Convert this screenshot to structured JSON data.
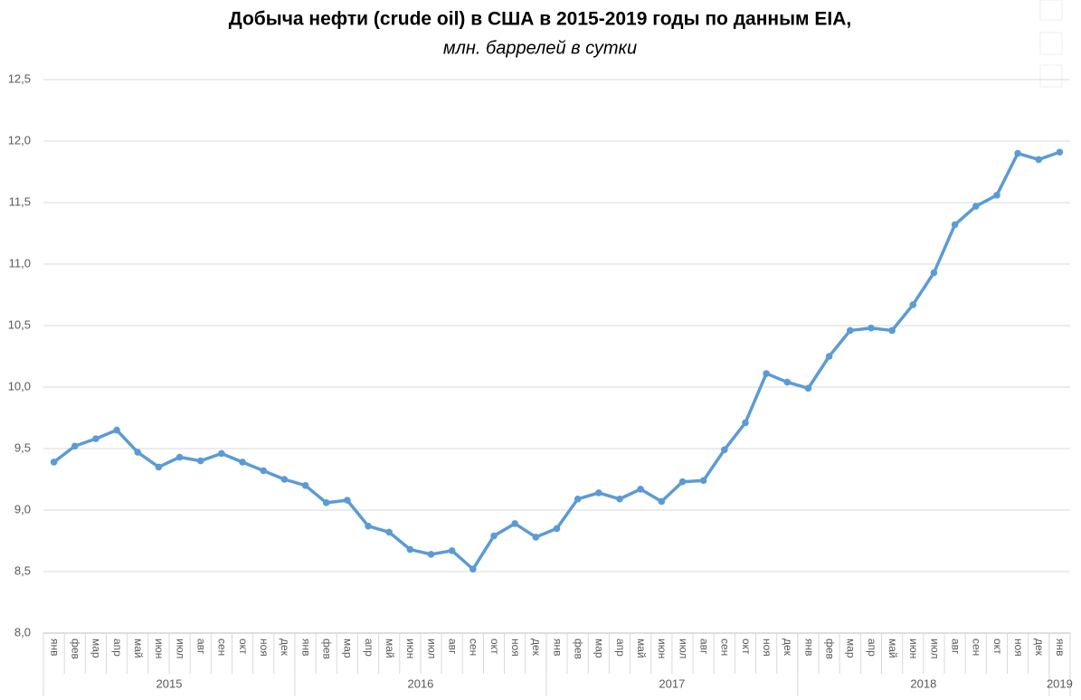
{
  "chart_data": {
    "type": "line",
    "title": "Добыча нефти (crude oil) в США в 2015-2019 годы по данным EIA,",
    "subtitle": "млн. баррелей в сутки",
    "categories": [
      "янв",
      "фев",
      "мар",
      "апр",
      "май",
      "июн",
      "июл",
      "авг",
      "сен",
      "окт",
      "ноя",
      "дек",
      "янв",
      "фев",
      "мар",
      "апр",
      "май",
      "июн",
      "июл",
      "авг",
      "сен",
      "окт",
      "ноя",
      "дек",
      "янв",
      "фев",
      "мар",
      "апр",
      "май",
      "июн",
      "июл",
      "авг",
      "сен",
      "окт",
      "ноя",
      "дек",
      "янв",
      "фев",
      "мар",
      "апр",
      "май",
      "июн",
      "июл",
      "авг",
      "сен",
      "окт",
      "ноя",
      "дек",
      "янв"
    ],
    "category_groups": [
      "2015",
      null,
      null,
      null,
      null,
      null,
      null,
      null,
      null,
      null,
      null,
      null,
      "2016",
      null,
      null,
      null,
      null,
      null,
      null,
      null,
      null,
      null,
      null,
      null,
      "2017",
      null,
      null,
      null,
      null,
      null,
      null,
      null,
      null,
      null,
      null,
      null,
      "2018",
      null,
      null,
      null,
      null,
      null,
      null,
      null,
      null,
      null,
      null,
      null,
      "2019"
    ],
    "values": [
      9.39,
      9.52,
      9.58,
      9.65,
      9.47,
      9.35,
      9.43,
      9.4,
      9.46,
      9.39,
      9.32,
      9.25,
      9.2,
      9.06,
      9.08,
      8.87,
      8.82,
      8.68,
      8.64,
      8.67,
      8.52,
      8.79,
      8.89,
      8.78,
      8.85,
      9.09,
      9.14,
      9.09,
      9.17,
      9.07,
      9.23,
      9.24,
      9.49,
      9.71,
      10.11,
      10.04,
      9.99,
      10.25,
      10.46,
      10.48,
      10.46,
      10.67,
      10.93,
      11.32,
      11.47,
      11.56,
      11.9,
      11.85,
      11.91
    ],
    "color": "#5b9bd5",
    "ylim": [
      8,
      12.5
    ],
    "yticks": [
      {
        "value": 8,
        "label": "8,0"
      },
      {
        "value": 8.5,
        "label": "8,5"
      },
      {
        "value": 9,
        "label": "9,0"
      },
      {
        "value": 9.5,
        "label": "9,5"
      },
      {
        "value": 10,
        "label": "10,0"
      },
      {
        "value": 10.5,
        "label": "10,5"
      },
      {
        "value": 11,
        "label": "11,0"
      },
      {
        "value": 11.5,
        "label": "11,5"
      },
      {
        "value": 12,
        "label": "12,0"
      },
      {
        "value": 12.5,
        "label": "12,5"
      }
    ],
    "grid": true
  }
}
